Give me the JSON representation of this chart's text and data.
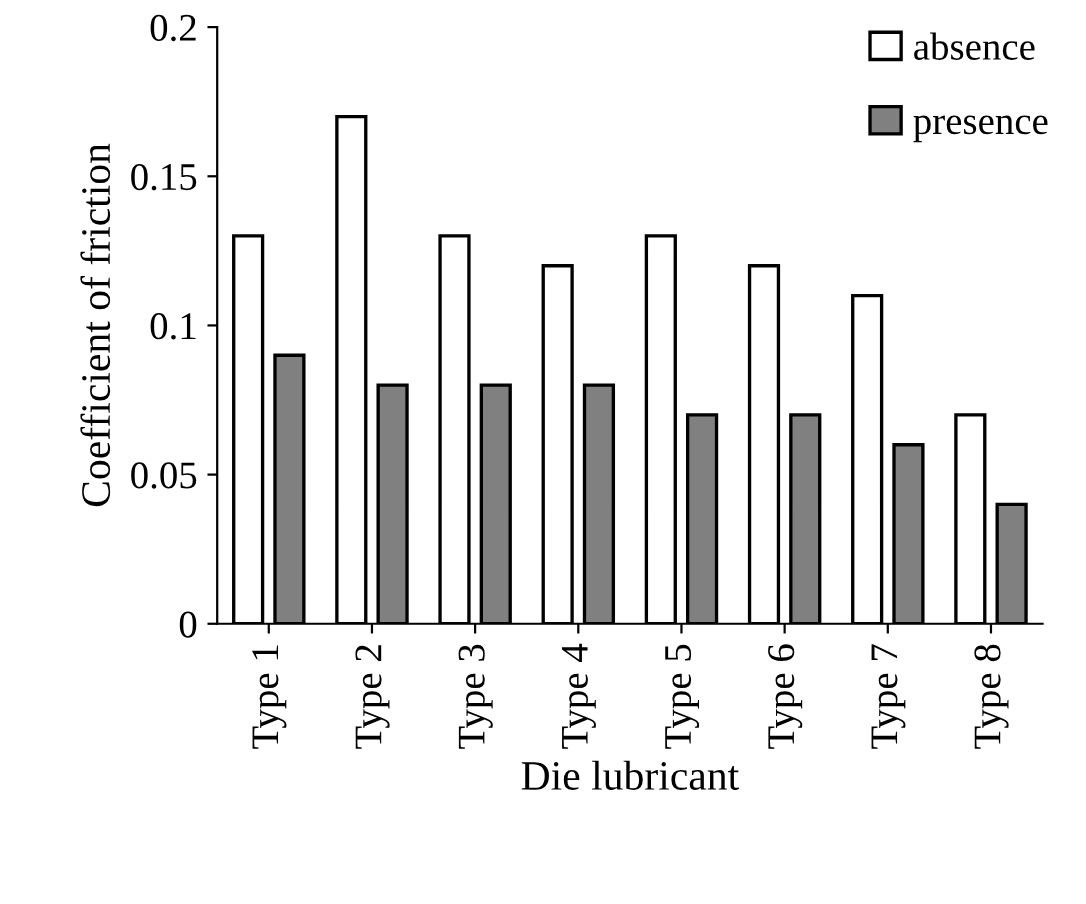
{
  "chart_data": {
    "type": "bar",
    "xlabel": "Die lubricant",
    "ylabel": "Coefficient of friction",
    "categories": [
      "Type 1",
      "Type 2",
      "Type 3",
      "Type 4",
      "Type 5",
      "Type 6",
      "Type 7",
      "Type 8"
    ],
    "series": [
      {
        "name": "absence",
        "color": "#ffffff",
        "values": [
          0.13,
          0.17,
          0.13,
          0.12,
          0.13,
          0.12,
          0.11,
          0.07
        ]
      },
      {
        "name": "presence",
        "color": "#808080",
        "values": [
          0.09,
          0.08,
          0.08,
          0.08,
          0.07,
          0.07,
          0.06,
          0.04
        ]
      }
    ],
    "ylim": [
      0,
      0.2
    ],
    "yticks": [
      0,
      0.05,
      {
        "value": 0.1,
        "label": "0.1"
      },
      0.15,
      {
        "value": 0.2,
        "label": "0.2"
      }
    ],
    "grid": false,
    "legend": "top right"
  }
}
